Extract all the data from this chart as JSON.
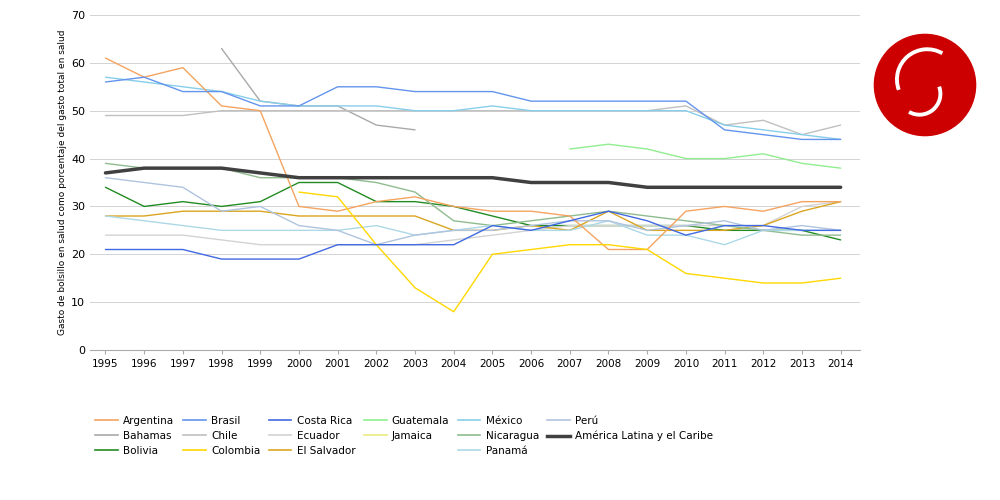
{
  "years": [
    1995,
    1996,
    1997,
    1998,
    1999,
    2000,
    2001,
    2002,
    2003,
    2004,
    2005,
    2006,
    2007,
    2008,
    2009,
    2010,
    2011,
    2012,
    2013,
    2014
  ],
  "series": [
    {
      "name": "Argentina",
      "color": "#F4A460",
      "linewidth": 1.0,
      "zorder": 3,
      "data": [
        61,
        57,
        59,
        51,
        50,
        30,
        29,
        31,
        32,
        30,
        29,
        29,
        28,
        21,
        21,
        29,
        30,
        29,
        31,
        31
      ]
    },
    {
      "name": "Bahamas",
      "color": "#A9A9A9",
      "linewidth": 1.0,
      "zorder": 2,
      "data": [
        null,
        null,
        null,
        63,
        52,
        51,
        51,
        47,
        46,
        null,
        null,
        null,
        null,
        null,
        null,
        null,
        null,
        null,
        null,
        null
      ]
    },
    {
      "name": "Bolivia",
      "color": "#228B22",
      "linewidth": 1.0,
      "zorder": 2,
      "data": [
        34,
        30,
        31,
        30,
        31,
        35,
        35,
        31,
        31,
        30,
        28,
        26,
        26,
        26,
        26,
        26,
        25,
        25,
        25,
        23
      ]
    },
    {
      "name": "Brasil",
      "color": "#6495ED",
      "linewidth": 1.0,
      "zorder": 3,
      "data": [
        56,
        57,
        54,
        54,
        51,
        51,
        55,
        55,
        54,
        54,
        54,
        52,
        52,
        52,
        52,
        52,
        46,
        45,
        44,
        44
      ]
    },
    {
      "name": "Chile",
      "color": "#C0C0C0",
      "linewidth": 1.0,
      "zorder": 2,
      "data": [
        49,
        49,
        49,
        50,
        50,
        50,
        50,
        50,
        50,
        50,
        50,
        50,
        50,
        50,
        50,
        51,
        47,
        48,
        45,
        47
      ]
    },
    {
      "name": "Colombia",
      "color": "#FFD700",
      "linewidth": 1.0,
      "zorder": 3,
      "data": [
        null,
        null,
        null,
        null,
        null,
        33,
        32,
        22,
        13,
        8,
        20,
        21,
        22,
        22,
        21,
        16,
        15,
        14,
        14,
        15
      ]
    },
    {
      "name": "Costa Rica",
      "color": "#4169E1",
      "linewidth": 1.0,
      "zorder": 3,
      "data": [
        21,
        21,
        21,
        19,
        19,
        19,
        22,
        22,
        22,
        22,
        26,
        25,
        27,
        29,
        27,
        24,
        26,
        26,
        25,
        25
      ]
    },
    {
      "name": "Ecuador",
      "color": "#D3D3D3",
      "linewidth": 1.0,
      "zorder": 2,
      "data": [
        24,
        24,
        24,
        23,
        22,
        22,
        22,
        22,
        22,
        23,
        24,
        25,
        26,
        26,
        26,
        26,
        26,
        26,
        30,
        31
      ]
    },
    {
      "name": "El Salvador",
      "color": "#DAA520",
      "linewidth": 1.0,
      "zorder": 2,
      "data": [
        28,
        28,
        29,
        29,
        29,
        28,
        28,
        28,
        28,
        25,
        25,
        26,
        25,
        29,
        25,
        25,
        25,
        26,
        29,
        31
      ]
    },
    {
      "name": "Guatemala",
      "color": "#90EE90",
      "linewidth": 1.0,
      "zorder": 2,
      "data": [
        null,
        null,
        null,
        null,
        null,
        null,
        null,
        null,
        null,
        null,
        null,
        null,
        42,
        43,
        42,
        40,
        40,
        41,
        39,
        38
      ]
    },
    {
      "name": "Jamaica",
      "color": "#EAEA80",
      "linewidth": 1.0,
      "zorder": 2,
      "data": [
        null,
        null,
        null,
        null,
        null,
        null,
        null,
        null,
        null,
        null,
        null,
        null,
        null,
        null,
        null,
        null,
        null,
        null,
        null,
        null
      ]
    },
    {
      "name": "México",
      "color": "#87CEEB",
      "linewidth": 1.0,
      "zorder": 2,
      "data": [
        57,
        56,
        55,
        54,
        52,
        51,
        51,
        51,
        50,
        50,
        51,
        50,
        50,
        50,
        50,
        50,
        47,
        46,
        45,
        44
      ]
    },
    {
      "name": "Nicaragua",
      "color": "#8FBC8F",
      "linewidth": 1.0,
      "zorder": 2,
      "data": [
        39,
        38,
        38,
        38,
        36,
        36,
        36,
        35,
        33,
        27,
        26,
        27,
        28,
        29,
        28,
        27,
        26,
        25,
        24,
        24
      ]
    },
    {
      "name": "Panamá",
      "color": "#ADD8E6",
      "linewidth": 1.0,
      "zorder": 2,
      "data": [
        28,
        27,
        26,
        25,
        25,
        25,
        25,
        26,
        24,
        25,
        26,
        25,
        25,
        27,
        24,
        24,
        22,
        25,
        25,
        25
      ]
    },
    {
      "name": "Perú",
      "color": "#B0C4DE",
      "linewidth": 1.0,
      "zorder": 2,
      "data": [
        36,
        35,
        34,
        29,
        30,
        26,
        25,
        22,
        24,
        25,
        25,
        26,
        27,
        27,
        25,
        26,
        27,
        25,
        26,
        25
      ]
    },
    {
      "name": "América Latina y el Caribe",
      "color": "#404040",
      "linewidth": 2.5,
      "zorder": 5,
      "data": [
        37,
        38,
        38,
        38,
        37,
        36,
        36,
        36,
        36,
        36,
        36,
        35,
        35,
        35,
        34,
        34,
        34,
        34,
        34,
        34
      ]
    }
  ],
  "legend_rows": [
    [
      "Argentina",
      "Bahamas",
      "Bolivia",
      "Brasil",
      "Chile",
      "Colombia"
    ],
    [
      "Costa Rica",
      "Ecuador",
      "El Salvador",
      "Guatemala",
      "Jamaica"
    ],
    [
      "México",
      "Nicaragua",
      "Panamá",
      "Perú",
      "América Latina y el Caribe"
    ]
  ],
  "ylabel": "Gasto de bolsillo en salud como porcentaje del gasto total en salud",
  "ylim": [
    0,
    70
  ],
  "yticks": [
    0,
    10,
    20,
    30,
    40,
    50,
    60,
    70
  ],
  "grid_color": "#d3d3d3"
}
